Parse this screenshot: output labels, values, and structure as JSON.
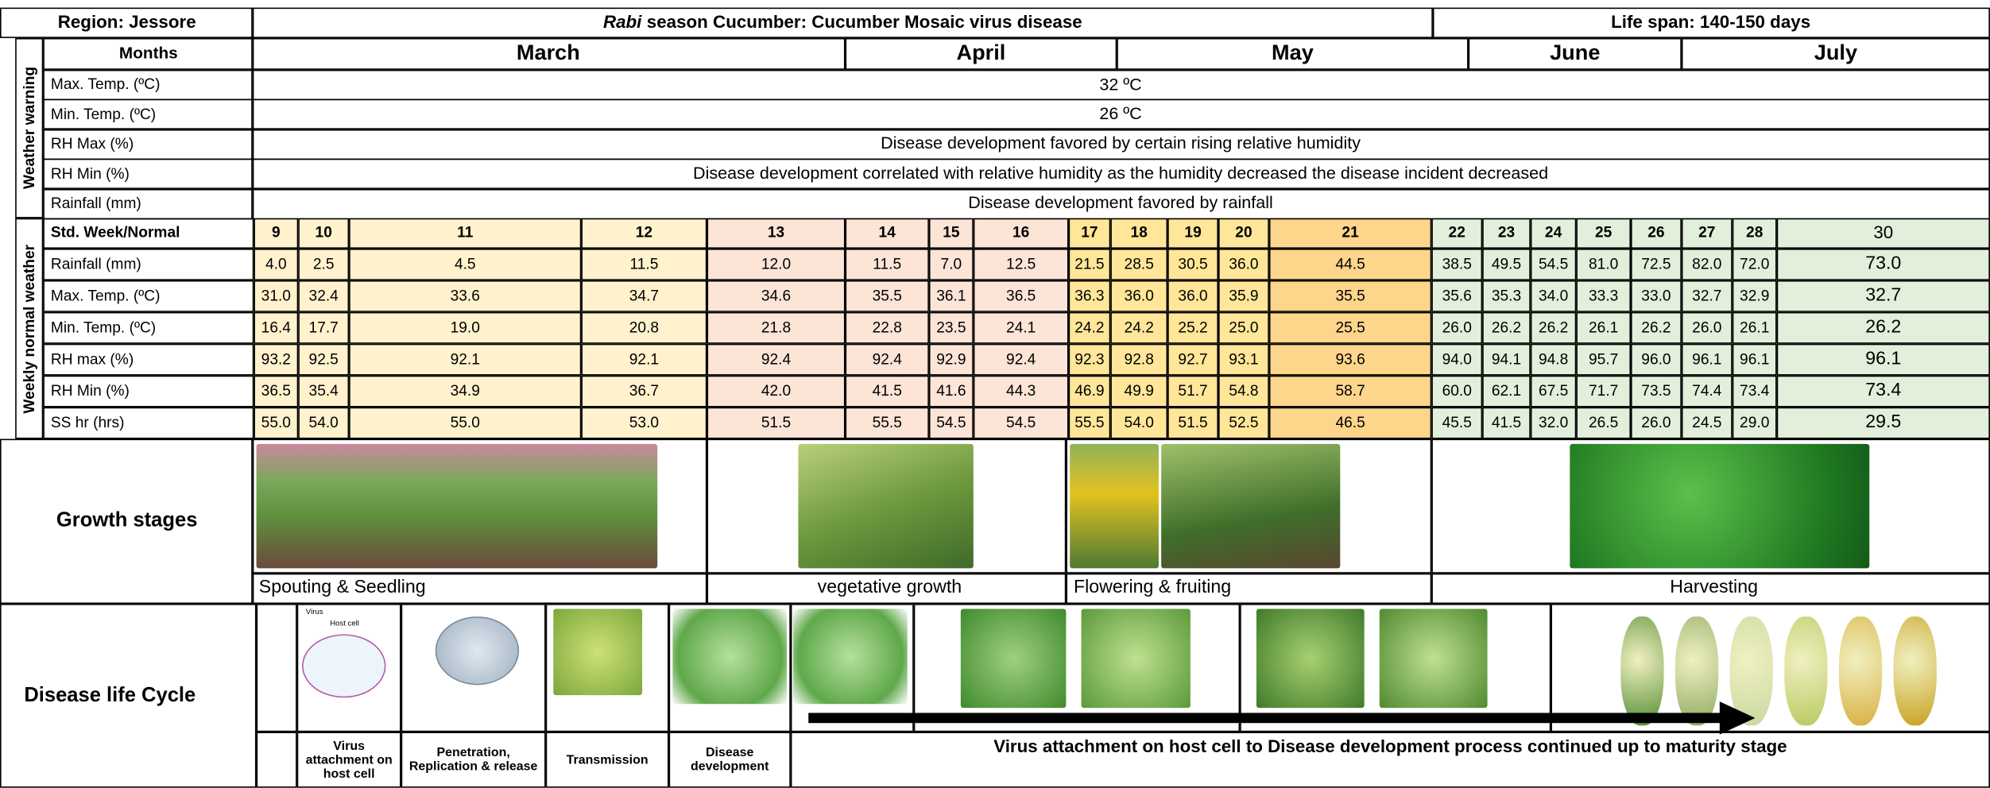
{
  "header": {
    "region": "Region:  Jessore",
    "title_italic": "Rabi",
    "title": "season Cucumber: Cucumber Mosaic virus disease",
    "life_span": "Life span: 140-150 days"
  },
  "months": {
    "label": "Months",
    "items": [
      "March",
      "April",
      "May",
      "June",
      "July"
    ]
  },
  "weather_warning": {
    "label": "Weather warning",
    "rows": [
      {
        "parameter": "Max. Temp. (ºC)",
        "value": "32 ºC"
      },
      {
        "parameter": "Min. Temp. (ºC)",
        "value": "26 ºC"
      },
      {
        "parameter": "RH Max (%)",
        "value": "Disease development favored by certain rising relative humidity"
      },
      {
        "parameter": "RH Min (%)",
        "value": "Disease development correlated with relative humidity as the humidity decreased the disease incident decreased"
      },
      {
        "parameter": "Rainfall (mm)",
        "value": "Disease development favored by rainfall"
      }
    ]
  },
  "weekly_normal": {
    "label": "Weekly normal weather",
    "header": "Std. Week/Normal",
    "weeks": [
      "9",
      "10",
      "11",
      "12",
      "13",
      "14",
      "15",
      "16",
      "17",
      "18",
      "19",
      "20",
      "21",
      "22",
      "23",
      "24",
      "25",
      "26",
      "27",
      "28",
      "30"
    ],
    "rows": [
      {
        "parameter": "Rainfall (mm)",
        "values": [
          "4.0",
          "2.5",
          "4.5",
          "11.5",
          "12.0",
          "11.5",
          "7.0",
          "12.5",
          "21.5",
          "28.5",
          "30.5",
          "36.0",
          "44.5",
          "38.5",
          "49.5",
          "54.5",
          "81.0",
          "72.5",
          "82.0",
          "72.0",
          "73.0"
        ]
      },
      {
        "parameter": "Max. Temp. (ºC)",
        "values": [
          "31.0",
          "32.4",
          "33.6",
          "34.7",
          "34.6",
          "35.5",
          "36.1",
          "36.5",
          "36.3",
          "36.0",
          "36.0",
          "35.9",
          "35.5",
          "35.6",
          "35.3",
          "34.0",
          "33.3",
          "33.0",
          "32.7",
          "32.9",
          "32.7"
        ]
      },
      {
        "parameter": "Min. Temp. (ºC)",
        "values": [
          "16.4",
          "17.7",
          "19.0",
          "20.8",
          "21.8",
          "22.8",
          "23.5",
          "24.1",
          "24.2",
          "24.2",
          "25.2",
          "25.0",
          "25.5",
          "26.0",
          "26.2",
          "26.2",
          "26.1",
          "26.2",
          "26.0",
          "26.1",
          "26.2"
        ]
      },
      {
        "parameter": "RH max (%)",
        "values": [
          "93.2",
          "92.5",
          "92.1",
          "92.1",
          "92.4",
          "92.4",
          "92.9",
          "92.4",
          "92.3",
          "92.8",
          "92.7",
          "93.1",
          "93.6",
          "94.0",
          "94.1",
          "94.8",
          "95.7",
          "96.0",
          "96.1",
          "96.1",
          "96.1"
        ]
      },
      {
        "parameter": "RH Min (%)",
        "values": [
          "36.5",
          "35.4",
          "34.9",
          "36.7",
          "42.0",
          "41.5",
          "41.6",
          "44.3",
          "46.9",
          "49.9",
          "51.7",
          "54.8",
          "58.7",
          "60.0",
          "62.1",
          "67.5",
          "71.7",
          "73.5",
          "74.4",
          "73.4",
          "73.4"
        ]
      },
      {
        "parameter": "SS hr (hrs)",
        "values": [
          "55.0",
          "54.0",
          "55.0",
          "53.0",
          "51.5",
          "55.5",
          "54.5",
          "54.5",
          "55.5",
          "54.0",
          "51.5",
          "52.5",
          "46.5",
          "45.5",
          "41.5",
          "32.0",
          "26.5",
          "26.0",
          "24.5",
          "29.0",
          "29.5"
        ]
      }
    ]
  },
  "growth_stages": {
    "label": "Growth stages",
    "stages": [
      "Spouting & Seedling",
      "vegetative growth",
      "Flowering & fruiting",
      "Harvesting"
    ]
  },
  "disease_life_cycle": {
    "label": "Disease life Cycle",
    "diagram_labels": [
      "Virus",
      "Host cell"
    ],
    "steps": [
      "Virus attachment on host cell",
      "Penetration, Replication & release",
      "Transmission",
      "Disease development"
    ],
    "summary": "Virus attachment on host cell to Disease development process continued up to maturity stage"
  }
}
